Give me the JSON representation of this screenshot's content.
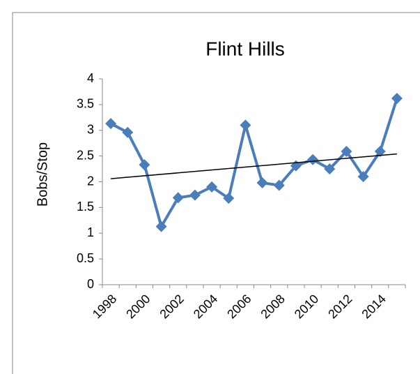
{
  "chart_data": {
    "type": "line",
    "title": "Flint Hills",
    "y_label": "Bobs/Stop",
    "categories": [
      "1998",
      null,
      "2000",
      null,
      "2002",
      null,
      "2004",
      null,
      "2006",
      null,
      "2008",
      null,
      "2010",
      null,
      "2012",
      null,
      "2014",
      null
    ],
    "series": [
      {
        "color": "#4a7ebb",
        "values": [
          3.13,
          2.96,
          2.33,
          1.13,
          1.69,
          1.74,
          1.9,
          1.68,
          3.1,
          1.98,
          1.93,
          2.31,
          2.43,
          2.25,
          2.59,
          2.1,
          2.59,
          3.62
        ]
      }
    ],
    "trendline": {
      "color": "#000000",
      "values": [
        2.06,
        2.54
      ]
    },
    "ylim": [
      0,
      4
    ],
    "yticks": [
      0,
      0.5,
      1,
      1.5,
      2,
      2.5,
      3,
      3.5,
      4
    ],
    "grid": false
  }
}
